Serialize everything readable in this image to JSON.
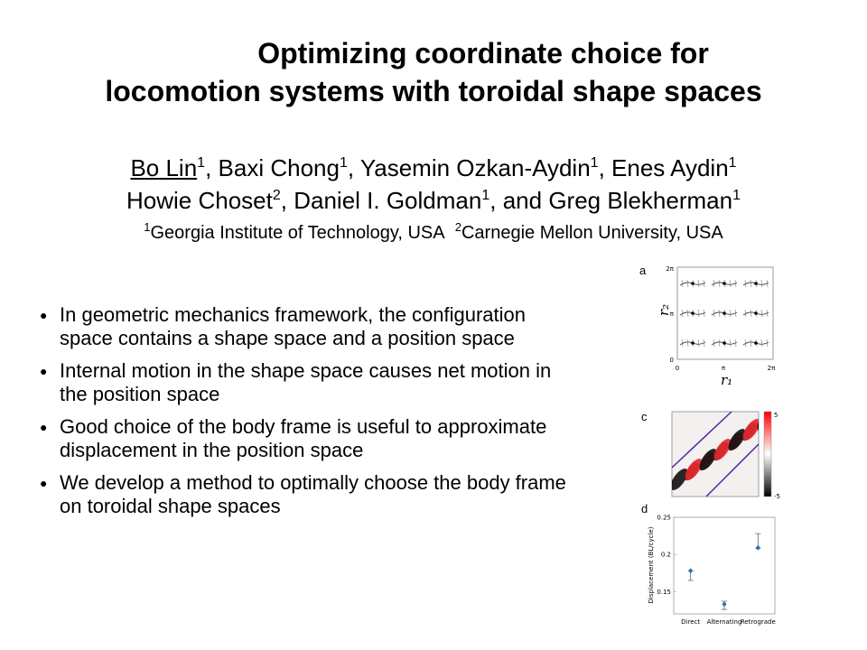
{
  "title": {
    "line1": "Optimizing coordinate choice for",
    "line2": "locomotion systems with toroidal shape spaces"
  },
  "authors": {
    "line1": [
      {
        "name": "Bo Lin",
        "sup": "1",
        "sep": ", ",
        "underline": true
      },
      {
        "name": "Baxi Chong",
        "sup": "1",
        "sep": ", "
      },
      {
        "name": "Yasemin Ozkan-Aydin",
        "sup": "1",
        "sep": ", "
      },
      {
        "name": "Enes Aydin",
        "sup": "1",
        "sep": ""
      }
    ],
    "line2": [
      {
        "name": "Howie Choset",
        "sup": "2",
        "sep": ", "
      },
      {
        "name": "Daniel I. Goldman",
        "sup": "1",
        "sep": ", and "
      },
      {
        "name": "Greg Blekherman",
        "sup": "1",
        "sep": ""
      }
    ]
  },
  "affiliations": [
    {
      "sup": "1",
      "text": "Georgia Institute of Technology, USA"
    },
    {
      "sup": "2",
      "text": "Carnegie Mellon University, USA"
    }
  ],
  "bullets": [
    "In geometric mechanics framework, the configuration space contains a shape space and a position space",
    "Internal motion in the shape space causes net motion in the position space",
    "Good choice of the body frame is useful to approximate displacement in the position space",
    "We develop a method to optimally choose the body frame on toroidal shape spaces"
  ],
  "bullet_symbol": "●",
  "figures": {
    "a": {
      "letter": "a",
      "ytick_top": "2π",
      "ytick_mid": "π",
      "ytick_bottom": "0",
      "xtick_left": "0",
      "xtick_mid": "π",
      "xtick_right": "2π",
      "ylabel": "r₂",
      "xlabel": "r₁"
    },
    "c": {
      "letter": "c",
      "colorbar_max": "5",
      "colorbar_min": "-5"
    },
    "d": {
      "letter": "d",
      "ylabel": "Displacement (BL/cycle)",
      "yticks": [
        "0.25",
        "0.2",
        "0.15"
      ],
      "chart_data": {
        "type": "scatter",
        "categories": [
          "Direct",
          "Alternating",
          "Retrograde"
        ],
        "values": [
          0.178,
          0.133,
          0.209
        ],
        "error_low": [
          0.165,
          0.126,
          0.208
        ],
        "error_high": [
          0.178,
          0.137,
          0.228
        ],
        "ylim": [
          0.12,
          0.25
        ],
        "ylabel": "Displacement (BL/cycle)"
      },
      "colors": {
        "marker": "#1f6fb8",
        "errorbar": "#666666"
      }
    }
  }
}
